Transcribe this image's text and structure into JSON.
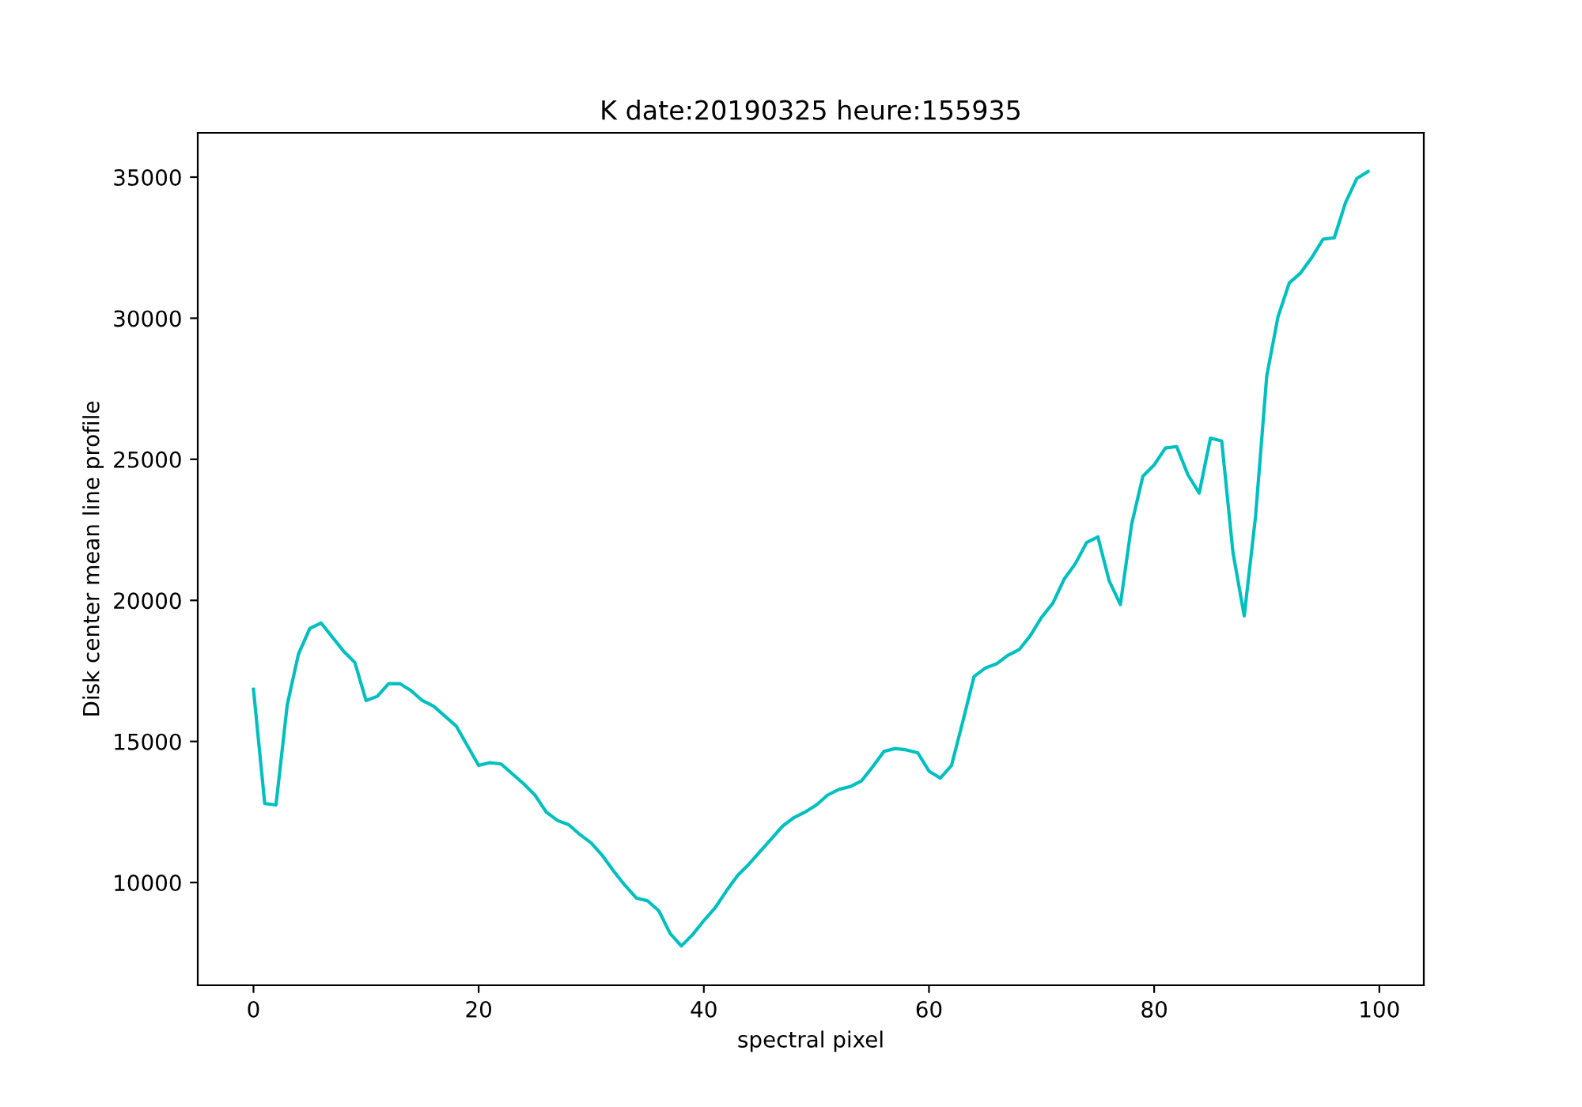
{
  "chart_data": {
    "type": "line",
    "title": "K date:20190325 heure:155935",
    "xlabel": "spectral pixel",
    "ylabel": "Disk center mean line profile",
    "x": [
      0,
      1,
      2,
      3,
      4,
      5,
      6,
      7,
      8,
      9,
      10,
      11,
      12,
      13,
      14,
      15,
      16,
      17,
      18,
      19,
      20,
      21,
      22,
      23,
      24,
      25,
      26,
      27,
      28,
      29,
      30,
      31,
      32,
      33,
      34,
      35,
      36,
      37,
      38,
      39,
      40,
      41,
      42,
      43,
      44,
      45,
      46,
      47,
      48,
      49,
      50,
      51,
      52,
      53,
      54,
      55,
      56,
      57,
      58,
      59,
      60,
      61,
      62,
      63,
      64,
      65,
      66,
      67,
      68,
      69,
      70,
      71,
      72,
      73,
      74,
      75,
      76,
      77,
      78,
      79,
      80,
      81,
      82,
      83,
      84,
      85,
      86,
      87,
      88,
      89,
      90,
      91,
      92,
      93,
      94,
      95,
      96,
      97,
      98,
      99
    ],
    "series": [
      {
        "color": "#00bfbf",
        "values": [
          16850,
          12800,
          12750,
          16300,
          18100,
          19000,
          19200,
          18700,
          18200,
          17800,
          16450,
          16600,
          17050,
          17050,
          16800,
          16450,
          16250,
          15900,
          15550,
          14850,
          14150,
          14250,
          14200,
          13850,
          13500,
          13100,
          12500,
          12200,
          12050,
          11700,
          11400,
          10950,
          10400,
          9900,
          9450,
          9350,
          9000,
          8200,
          7750,
          8150,
          8650,
          9100,
          9700,
          10250,
          10650,
          11100,
          11550,
          12000,
          12300,
          12500,
          12750,
          13100,
          13300,
          13400,
          13600,
          14100,
          14650,
          14750,
          14700,
          14600,
          13950,
          13700,
          14150,
          15700,
          17300,
          17600,
          17750,
          18050,
          18250,
          18750,
          19400,
          19900,
          20750,
          21300,
          22050,
          22250,
          20700,
          19850,
          22700,
          24400,
          24800,
          25400,
          25450,
          24450,
          23800,
          25750,
          25650,
          21700,
          19450,
          22950,
          27950,
          30050,
          31250,
          31600,
          32150,
          32800,
          32850,
          34100,
          34950,
          35200
        ]
      }
    ],
    "xlim": [
      -4.95,
      103.95
    ],
    "ylim": [
      6360,
      36570
    ],
    "xticks": [
      0,
      20,
      40,
      60,
      80,
      100
    ],
    "yticks": [
      10000,
      15000,
      20000,
      25000,
      30000,
      35000
    ],
    "marker": "none",
    "line_style": "solid"
  }
}
